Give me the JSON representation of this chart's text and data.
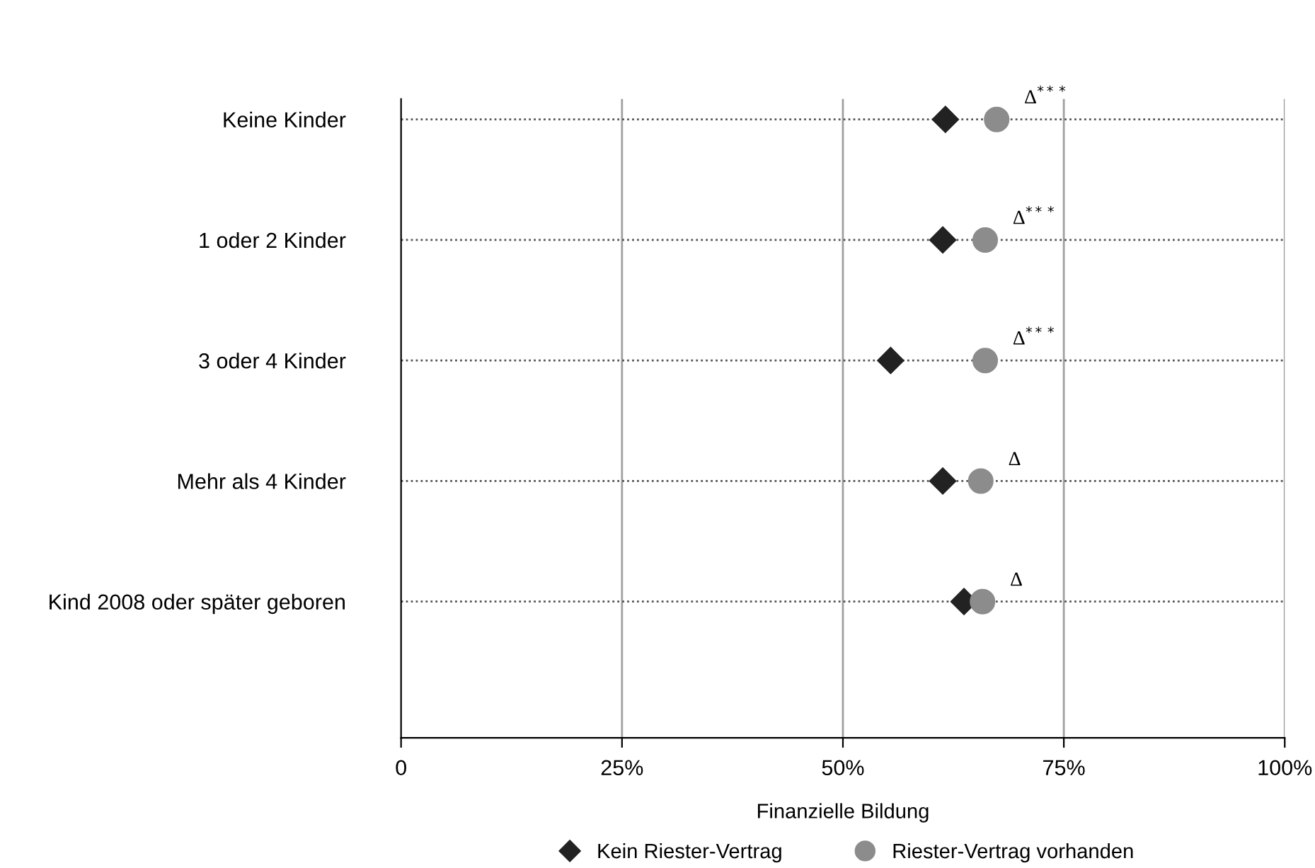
{
  "chart_data": {
    "type": "scatter",
    "orientation": "horizontal",
    "xlabel": "Finanzielle Bildung",
    "categories": [
      "Keine Kinder",
      "1 oder 2 Kinder",
      "3 oder 4 Kinder",
      "Mehr als 4 Kinder",
      "Kind 2008 oder später geboren"
    ],
    "series": [
      {
        "name": "Kein Riester-Vertrag",
        "color": "#222222",
        "marker": "diamond",
        "values": [
          61.6,
          61.3,
          55.4,
          61.3,
          63.7
        ]
      },
      {
        "name": "Riester-Vertrag vorhanden",
        "color": "#8c8c8c",
        "marker": "circle",
        "values": [
          67.4,
          66.1,
          66.1,
          65.6,
          65.8
        ]
      }
    ],
    "xlim": [
      0,
      100
    ],
    "xticks": [
      0,
      {
        "value": 25,
        "label": "25%"
      },
      {
        "value": 50,
        "label": "50%"
      },
      {
        "value": 75,
        "label": "75%"
      },
      {
        "value": 100,
        "label": "100%"
      }
    ],
    "grid": true,
    "legend": "bottom",
    "annotations": [
      "Δ$^{***}$",
      "Δ$^{***}$",
      "Δ$^{***}$",
      "Δ",
      "Δ"
    ]
  }
}
